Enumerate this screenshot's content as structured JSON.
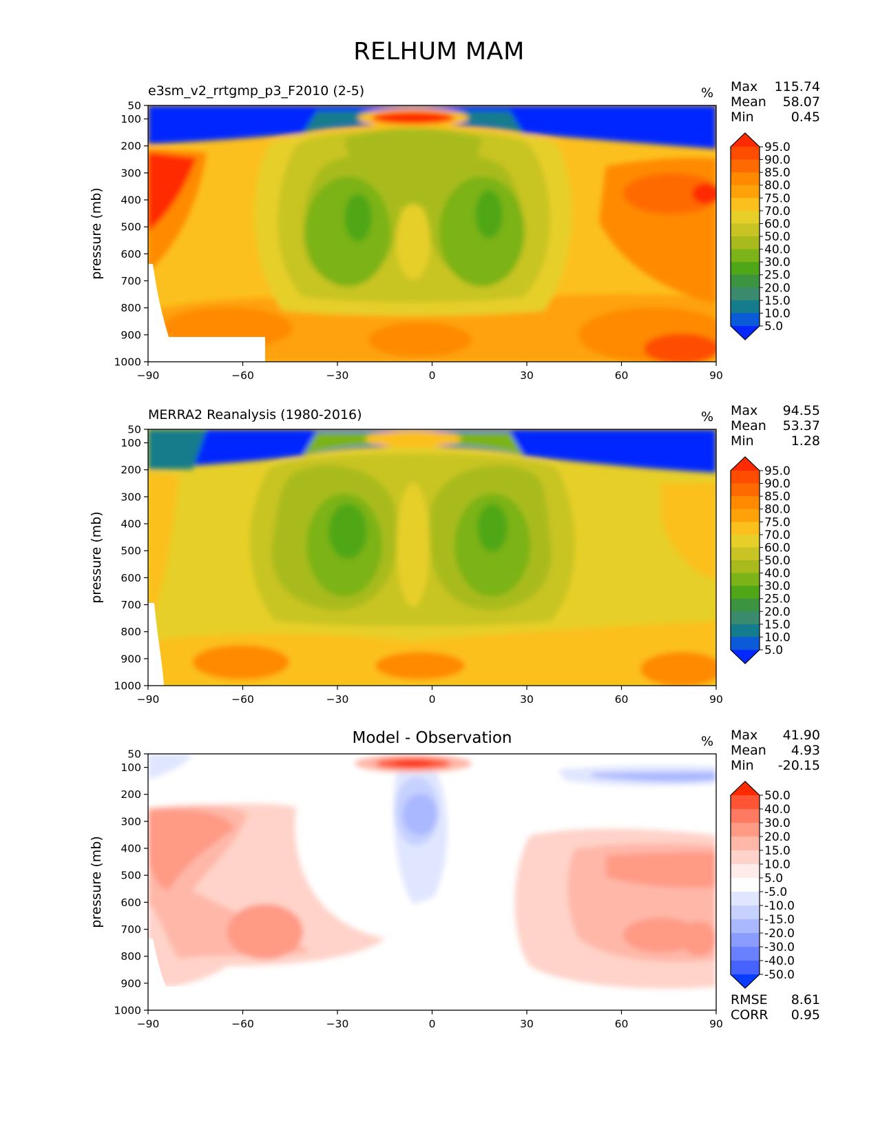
{
  "title": "RELHUM MAM",
  "chart_data": [
    {
      "type": "contour",
      "title": "e3sm_v2_rrtgmp_p3_F2010 (2-5)",
      "units": "%",
      "ylabel": "pressure (mb)",
      "xlabel": "",
      "xlim": [
        -90,
        90
      ],
      "ylim": [
        1000,
        50
      ],
      "x_ticks": [
        "−90",
        "−60",
        "−30",
        "0",
        "30",
        "60",
        "90"
      ],
      "y_ticks": [
        "50",
        "100",
        "200",
        "300",
        "400",
        "500",
        "600",
        "700",
        "800",
        "900",
        "1000"
      ],
      "stats": {
        "max_label": "Max",
        "max": "115.74",
        "mean_label": "Mean",
        "mean": "58.07",
        "min_label": "Min",
        "min": "0.45"
      },
      "colorbar_labels": [
        "95.0",
        "90.0",
        "85.0",
        "80.0",
        "75.0",
        "70.0",
        "60.0",
        "50.0",
        "40.0",
        "30.0",
        "25.0",
        "20.0",
        "15.0",
        "10.0",
        "5.0"
      ],
      "colorbar_colors": [
        "#ff2a00",
        "#ff4d00",
        "#ff6a00",
        "#ff8a00",
        "#ffa20a",
        "#fcc01e",
        "#e7cf29",
        "#c8c423",
        "#a9bb1c",
        "#7bb318",
        "#4fa718",
        "#3d9440",
        "#3a8a6e",
        "#147c8c",
        "#0b5ad8",
        "#0528ff"
      ]
    },
    {
      "type": "contour",
      "title": "MERRA2 Reanalysis (1980-2016)",
      "units": "%",
      "ylabel": "pressure (mb)",
      "xlabel": "",
      "xlim": [
        -90,
        90
      ],
      "ylim": [
        1000,
        50
      ],
      "x_ticks": [
        "−90",
        "−60",
        "−30",
        "0",
        "30",
        "60",
        "90"
      ],
      "y_ticks": [
        "50",
        "100",
        "200",
        "300",
        "400",
        "500",
        "600",
        "700",
        "800",
        "900",
        "1000"
      ],
      "stats": {
        "max_label": "Max",
        "max": "94.55",
        "mean_label": "Mean",
        "mean": "53.37",
        "min_label": "Min",
        "min": "1.28"
      },
      "colorbar_labels": [
        "95.0",
        "90.0",
        "85.0",
        "80.0",
        "75.0",
        "70.0",
        "60.0",
        "50.0",
        "40.0",
        "30.0",
        "25.0",
        "20.0",
        "15.0",
        "10.0",
        "5.0"
      ],
      "colorbar_colors": [
        "#ff2a00",
        "#ff4d00",
        "#ff6a00",
        "#ff8a00",
        "#ffa20a",
        "#fcc01e",
        "#e7cf29",
        "#c8c423",
        "#a9bb1c",
        "#7bb318",
        "#4fa718",
        "#3d9440",
        "#3a8a6e",
        "#147c8c",
        "#0b5ad8",
        "#0528ff"
      ]
    },
    {
      "type": "contour",
      "title": "Model - Observation",
      "units": "%",
      "ylabel": "pressure (mb)",
      "xlabel": "",
      "xlim": [
        -90,
        90
      ],
      "ylim": [
        1000,
        50
      ],
      "x_ticks": [
        "−90",
        "−60",
        "−30",
        "0",
        "30",
        "60",
        "90"
      ],
      "y_ticks": [
        "50",
        "100",
        "200",
        "300",
        "400",
        "500",
        "600",
        "700",
        "800",
        "900",
        "1000"
      ],
      "stats": {
        "max_label": "Max",
        "max": "41.90",
        "mean_label": "Mean",
        "mean": "4.93",
        "min_label": "Min",
        "min": "-20.15"
      },
      "colorbar_labels": [
        "50.0",
        "40.0",
        "30.0",
        "20.0",
        "15.0",
        "10.0",
        "5.0",
        "-5.0",
        "-10.0",
        "-15.0",
        "-20.0",
        "-30.0",
        "-40.0",
        "-50.0"
      ],
      "colorbar_colors": [
        "#ff2a00",
        "#ff5535",
        "#ff7a60",
        "#ff9a85",
        "#ffb7a8",
        "#ffd3c9",
        "#ffecea",
        "#ffffff",
        "#e0e6ff",
        "#c6d1ff",
        "#aab8ff",
        "#8a9dff",
        "#6a81ff",
        "#4763ff",
        "#0a3cff"
      ],
      "rmse_label": "RMSE",
      "rmse": "8.61",
      "corr_label": "CORR",
      "corr": "0.95"
    }
  ]
}
